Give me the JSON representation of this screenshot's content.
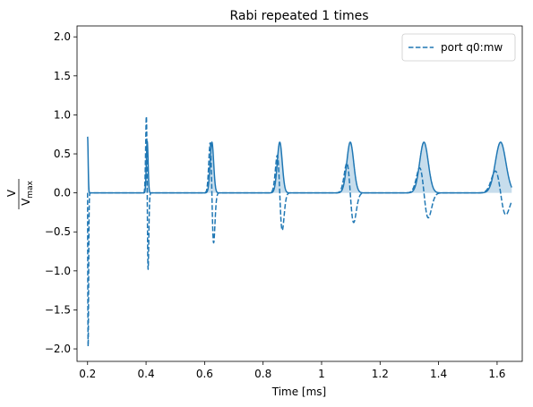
{
  "chart_data": {
    "type": "line",
    "title": "Rabi repeated 1 times",
    "xlabel": "Time [ms]",
    "ylabel": {
      "num": "V",
      "den": "V",
      "den_sub": "max"
    },
    "xlim": [
      0.164,
      1.686
    ],
    "ylim": [
      -2.16,
      2.14
    ],
    "xticks": [
      0.2,
      0.4,
      0.6,
      0.8,
      1.0,
      1.2,
      1.4,
      1.6
    ],
    "xtick_labels": [
      "0.2",
      "0.4",
      "0.6",
      "0.8",
      "1",
      "1.2",
      "1.4",
      "1.6"
    ],
    "yticks": [
      2.0,
      1.5,
      1.0,
      0.5,
      0.0,
      -0.5,
      -1.0,
      -1.5,
      -2.0
    ],
    "ytick_labels": [
      "2.0",
      "1.5",
      "1.0",
      "0.5",
      "0.0",
      "−0.5",
      "−1.0",
      "−1.5",
      "−2.0"
    ],
    "grid": false,
    "legend": {
      "position": "top-right",
      "entries": [
        {
          "label": "port q0:mw",
          "style": "dashed"
        }
      ]
    },
    "colors": {
      "line": "#1f77b4",
      "fill": "#1f77b4",
      "axes": "#000000"
    },
    "x_range": [
      0.2,
      1.65
    ],
    "pulses": [
      {
        "center": 0.2,
        "width": 0.008,
        "amp_solid": 0.72,
        "amp_dashed": 1.97,
        "amp_dashed_min": -1.97
      },
      {
        "center": 0.404,
        "width": 0.012,
        "amp_solid": 0.66,
        "amp_dashed": 0.98,
        "amp_dashed_min": -0.98
      },
      {
        "center": 0.625,
        "width": 0.024,
        "amp_solid": 0.65,
        "amp_dashed": 0.64,
        "amp_dashed_min": -0.64
      },
      {
        "center": 0.857,
        "width": 0.034,
        "amp_solid": 0.65,
        "amp_dashed": 0.48,
        "amp_dashed_min": -0.48
      },
      {
        "center": 1.098,
        "width": 0.047,
        "amp_solid": 0.65,
        "amp_dashed": 0.38,
        "amp_dashed_min": -0.38
      },
      {
        "center": 1.35,
        "width": 0.059,
        "amp_solid": 0.65,
        "amp_dashed": 0.32,
        "amp_dashed_min": -0.32
      },
      {
        "center": 1.612,
        "width": 0.072,
        "amp_solid": 0.65,
        "amp_dashed": 0.28,
        "amp_dashed_min": -0.28
      }
    ]
  }
}
